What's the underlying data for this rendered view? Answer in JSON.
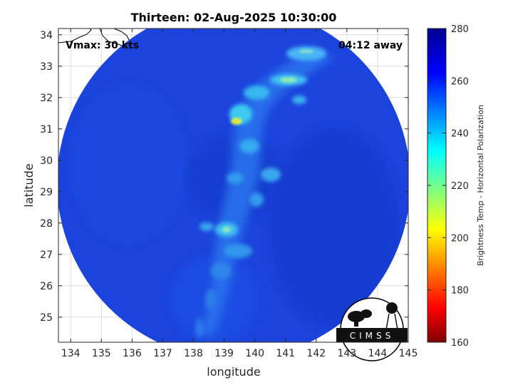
{
  "title": "Thirteen: 02-Aug-2025 10:30:00",
  "vmax_label": "Vmax: 30 kts",
  "away_label": "04:12 away",
  "x_axis": {
    "label": "longitude",
    "range": [
      133.6,
      145.0
    ],
    "ticks": [
      134,
      135,
      136,
      137,
      138,
      139,
      140,
      141,
      142,
      143,
      144,
      145
    ]
  },
  "y_axis": {
    "label": "latitude",
    "range": [
      24.2,
      34.2
    ],
    "ticks": [
      25,
      26,
      27,
      28,
      29,
      30,
      31,
      32,
      33,
      34
    ]
  },
  "colorbar": {
    "label": "Brightness Temp - Horizontal Polarization",
    "range": [
      160,
      280
    ],
    "ticks": [
      160,
      180,
      200,
      220,
      240,
      260,
      280
    ]
  },
  "logo_text": "CIMSS",
  "colors": {
    "background_tb": "#1a40d8",
    "band_tb": "#37c8f5",
    "peak_tb": "#e8e020",
    "grid": "#dcdcdc"
  },
  "overpass": {
    "footprint": "circular swath",
    "center_lon_lat": [
      139.3,
      29.2
    ],
    "background_temp_K": 262,
    "min_temp_K": 205,
    "features": [
      {
        "name": "northern band",
        "lon_lat": [
          141.0,
          32.4
        ],
        "temp_K": 230
      },
      {
        "name": "cold peak",
        "lon_lat": [
          139.2,
          31.1
        ],
        "temp_K": 205
      },
      {
        "name": "southern band",
        "lon_lat": [
          139.1,
          27.6
        ],
        "temp_K": 238
      }
    ]
  }
}
